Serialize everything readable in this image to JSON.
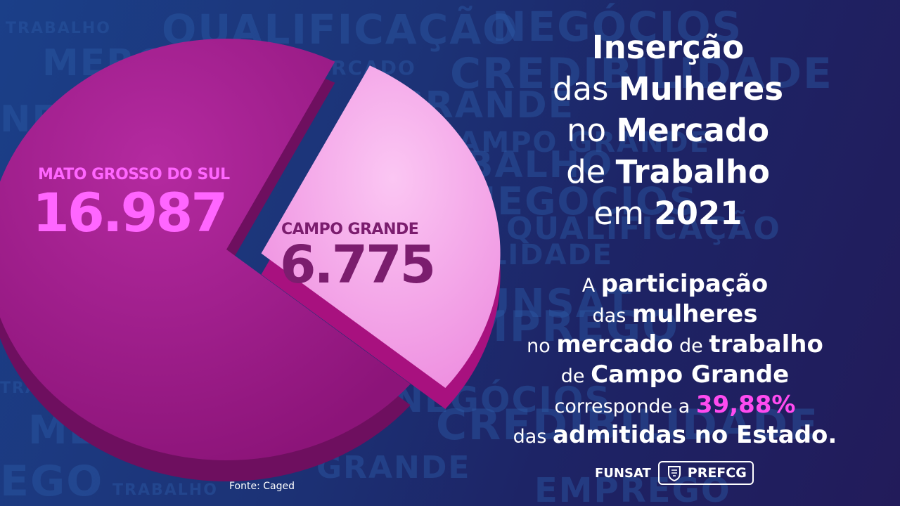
{
  "background_words": [
    "TRABALHO",
    "QUALIFICAÇÃO",
    "NEGÓCIOS",
    "MERC",
    "MERCADO",
    "CREDIBILIDADE",
    "NEGÓCIOS",
    "GRANDE",
    "CAMPO GRANDE",
    "TRABALHO",
    "NEGÓCIOS",
    "QUALIFICAÇÃO",
    "CREDIBILIDADE",
    "FUNSAT",
    "EMPREGO",
    "TRABALHO",
    "NEGÓCIOS",
    "CREDIBILIDADE",
    "MERCADO",
    "EGO",
    "GRANDE",
    "TRABALHO",
    "EMPREGO"
  ],
  "title": {
    "l1": "Inserção",
    "l2a": "das ",
    "l2b": "Mulheres",
    "l3a": "no ",
    "l3b": "Mercado",
    "l4a": "de ",
    "l4b": "Trabalho",
    "l5a": "em ",
    "l5b": "2021"
  },
  "body": {
    "l1a": "A ",
    "l1b": "participação",
    "l2a": "das ",
    "l2b": "mulheres",
    "l3a": "no ",
    "l3b": "mercado",
    "l3c": " de ",
    "l3d": "trabalho",
    "l4a": "de ",
    "l4b": "Campo Grande",
    "l5a": "corresponde a ",
    "l5b": "39,88%",
    "l6a": "das ",
    "l6b": "admitidas no Estado."
  },
  "source": "Fonte: Caged",
  "logos": {
    "funsat": "FUNSAT",
    "pref_a": "PREF",
    "pref_b": "CG"
  },
  "colors": {
    "ms_slice": "#a31d8e",
    "cg_slice": "#f5a8ea",
    "highlight": "#ff4bf0"
  },
  "chart_data": {
    "type": "pie",
    "categories": [
      "MATO GROSSO DO SUL",
      "CAMPO GRANDE"
    ],
    "values": [
      16987,
      6775
    ],
    "value_labels": [
      "16.987",
      "6.775"
    ]
  }
}
